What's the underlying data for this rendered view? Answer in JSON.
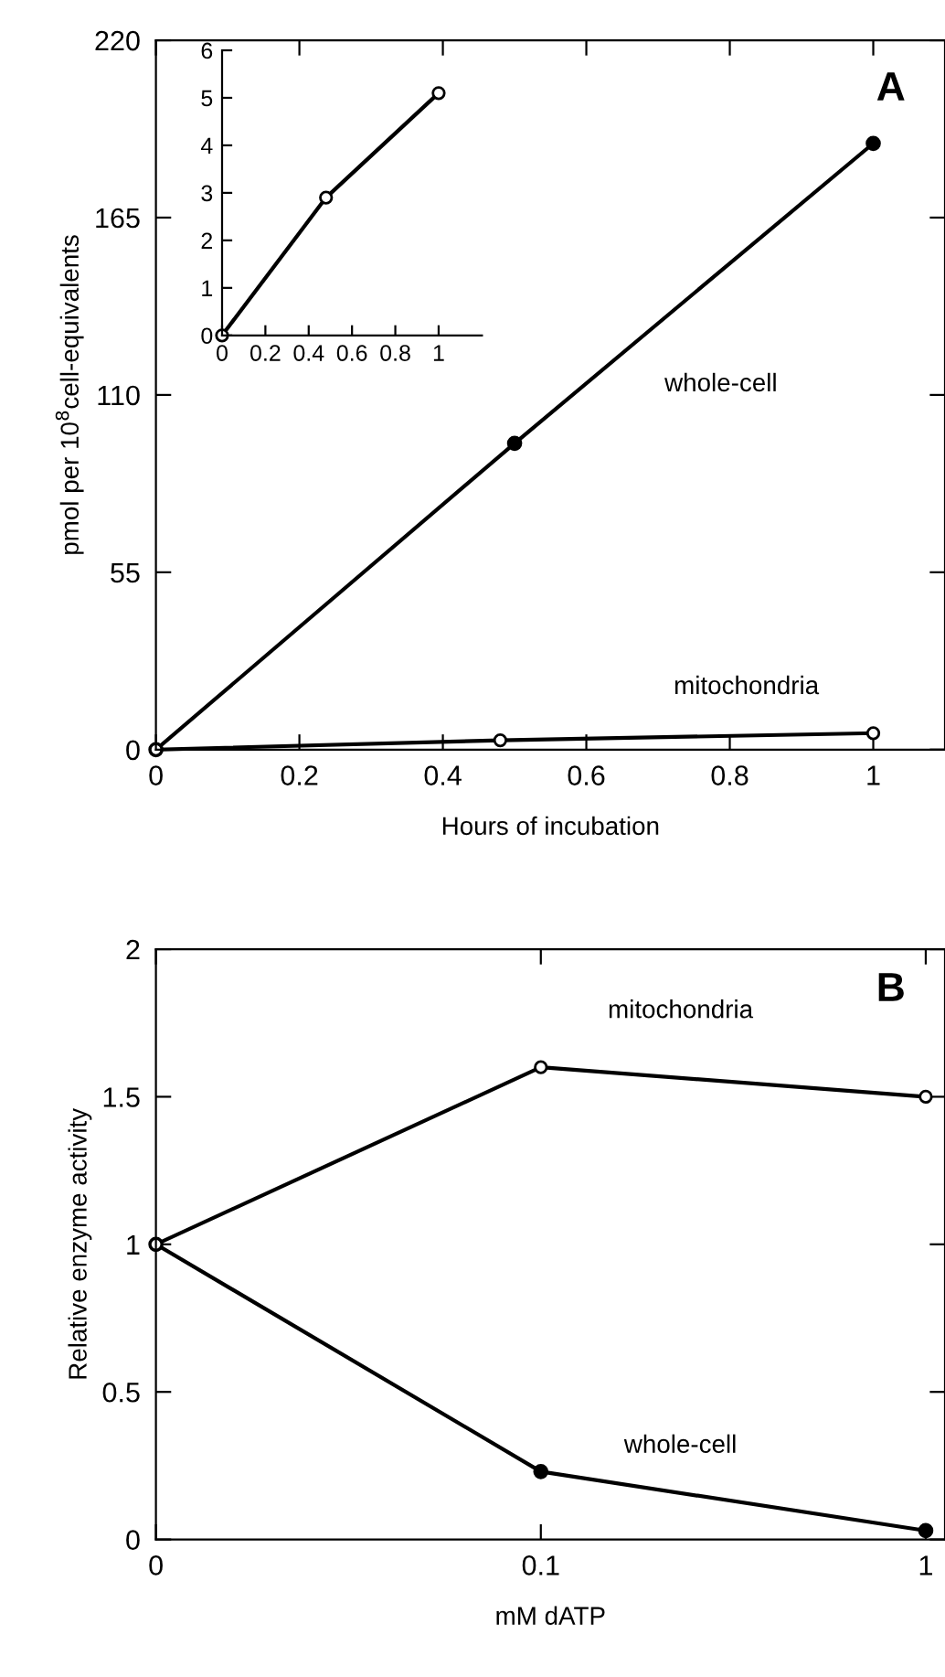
{
  "chart_data": [
    {
      "type": "line",
      "title": "A",
      "xlabel": "Hours of incubation",
      "ylabel": "pmol per 10$^{8}$cell-equivalents",
      "xlim": [
        0,
        1.1
      ],
      "ylim": [
        0,
        220
      ],
      "xticks": [
        0,
        0.2,
        0.4,
        0.6,
        0.8,
        1
      ],
      "yticks": [
        0,
        55,
        110,
        165,
        220
      ],
      "marker": "circle",
      "line_style": "solid",
      "grid": false,
      "series": [
        {
          "name": "whole-cell",
          "color": "#000000",
          "x": [
            0,
            0.5,
            1
          ],
          "values": [
            0,
            95,
            188
          ]
        },
        {
          "name": "mitochondria",
          "color": "#000000",
          "x": [
            0,
            0.48,
            1
          ],
          "values": [
            0,
            2.9,
            5.1
          ]
        }
      ]
    },
    {
      "type": "line",
      "x": [
        0,
        0.48,
        1
      ],
      "xlim": [
        0,
        1.2
      ],
      "ylim": [
        0,
        6
      ],
      "xticks": [
        0,
        0.2,
        0.4,
        0.6,
        0.8,
        1
      ],
      "yticks": [
        0,
        1,
        2,
        3,
        4,
        5,
        6
      ],
      "marker": "circle",
      "line_style": "solid",
      "grid": false,
      "series": [
        {
          "color": "#000000",
          "values": [
            0,
            2.9,
            5.1
          ]
        }
      ]
    },
    {
      "type": "line",
      "title": "B",
      "xlabel": "mM dATP",
      "ylabel": "Relative enzyme activity",
      "categories": [
        "0",
        "0.1",
        "1"
      ],
      "ylim": [
        0,
        2
      ],
      "yticks": [
        0,
        0.5,
        1,
        1.5,
        2
      ],
      "marker": "circle",
      "line_style": "solid",
      "grid": false,
      "series": [
        {
          "name": "whole-cell",
          "color": "#000000",
          "values": [
            1,
            0.23,
            0.03
          ]
        },
        {
          "name": "mitochondria",
          "color": "#000000",
          "values": [
            1,
            1.6,
            1.5
          ]
        }
      ]
    }
  ]
}
